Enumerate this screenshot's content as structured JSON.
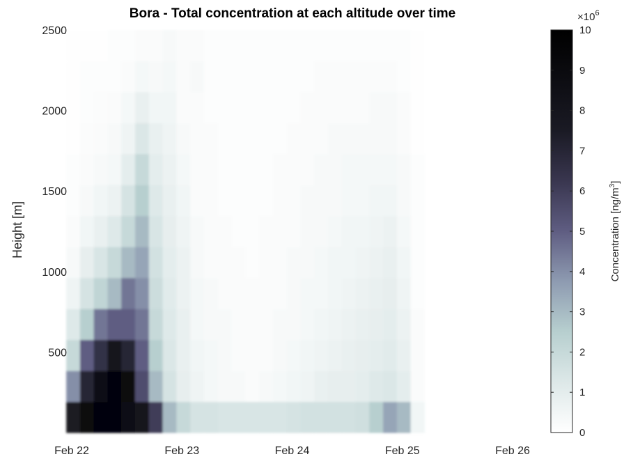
{
  "chart_data": {
    "type": "heatmap",
    "title": "Bora - Total concentration at each altitude over time",
    "ylabel": "Height [m]",
    "xlabel": "",
    "ylim": [
      0,
      2500
    ],
    "yticks": [
      500,
      1000,
      1500,
      2000,
      2500
    ],
    "xlim": [
      "Feb 22",
      "Feb 26"
    ],
    "xticks": [
      "Feb 22",
      "Feb 23",
      "Feb 24",
      "Feb 25",
      "Feb 26"
    ],
    "colorbar": {
      "label": "Concentration [ng/m",
      "label_superscript": "3",
      "label_suffix": "]",
      "multiplier": "×10",
      "multiplier_exponent": "6",
      "range": [
        0,
        10
      ],
      "ticks": [
        0,
        1,
        2,
        3,
        4,
        5,
        6,
        7,
        8,
        9,
        10
      ],
      "colormap": "bone (reversed)"
    },
    "columns": [
      {
        "time": "Feb 22 00:00",
        "values": [
          7.5,
          4.0,
          2.0,
          1.2,
          0.6,
          0.3,
          0.2,
          0.1,
          0.1,
          0.05,
          0.05,
          0.05,
          0.05
        ]
      },
      {
        "time": "Feb 22 03:00",
        "values": [
          9.0,
          7.0,
          5.0,
          2.5,
          1.5,
          0.9,
          0.5,
          0.3,
          0.2,
          0.15,
          0.1,
          0.1,
          0.05
        ]
      },
      {
        "time": "Feb 22 06:00",
        "values": [
          9.5,
          8.5,
          6.5,
          4.5,
          2.2,
          1.4,
          0.8,
          0.5,
          0.3,
          0.2,
          0.15,
          0.1,
          0.05
        ]
      },
      {
        "time": "Feb 22 09:00",
        "values": [
          9.5,
          9.5,
          8.0,
          5.0,
          3.0,
          2.0,
          1.2,
          0.7,
          0.4,
          0.3,
          0.2,
          0.1,
          0.1
        ]
      },
      {
        "time": "Feb 22 12:00",
        "values": [
          8.5,
          9.0,
          7.0,
          5.0,
          4.5,
          3.0,
          2.0,
          1.5,
          1.0,
          0.6,
          0.4,
          0.2,
          0.1
        ]
      },
      {
        "time": "Feb 22 15:00",
        "values": [
          8.0,
          5.5,
          5.0,
          4.5,
          4.0,
          3.5,
          3.0,
          2.5,
          2.0,
          1.3,
          0.8,
          0.4,
          0.2
        ]
      },
      {
        "time": "Feb 22 18:00",
        "values": [
          6.0,
          3.0,
          2.5,
          2.0,
          1.8,
          1.6,
          1.4,
          1.2,
          1.0,
          0.8,
          0.5,
          0.3,
          0.2
        ]
      },
      {
        "time": "Feb 22 21:00",
        "values": [
          3.0,
          1.5,
          1.3,
          1.2,
          1.1,
          1.0,
          0.9,
          0.8,
          0.7,
          0.6,
          0.5,
          0.4,
          0.3
        ]
      },
      {
        "time": "Feb 23 00:00",
        "values": [
          2.0,
          0.9,
          0.8,
          0.8,
          0.7,
          0.7,
          0.6,
          0.5,
          0.4,
          0.3,
          0.2,
          0.2,
          0.2
        ]
      },
      {
        "time": "Feb 23 03:00",
        "values": [
          1.5,
          0.6,
          0.5,
          0.4,
          0.4,
          0.3,
          0.3,
          0.2,
          0.2,
          0.2,
          0.2,
          0.3,
          0.2
        ]
      },
      {
        "time": "Feb 23 06:00",
        "values": [
          1.5,
          0.4,
          0.4,
          0.3,
          0.3,
          0.2,
          0.2,
          0.2,
          0.2,
          0.2,
          0.1,
          0.1,
          0.1
        ]
      },
      {
        "time": "Feb 23 09:00",
        "values": [
          1.4,
          0.3,
          0.3,
          0.3,
          0.2,
          0.2,
          0.2,
          0.1,
          0.1,
          0.1,
          0.1,
          0.1,
          0.1
        ]
      },
      {
        "time": "Feb 23 12:00",
        "values": [
          1.4,
          0.3,
          0.2,
          0.2,
          0.2,
          0.2,
          0.1,
          0.1,
          0.1,
          0.1,
          0.1,
          0.1,
          0.1
        ]
      },
      {
        "time": "Feb 23 15:00",
        "values": [
          1.4,
          0.2,
          0.2,
          0.2,
          0.2,
          0.1,
          0.1,
          0.1,
          0.1,
          0.1,
          0.1,
          0.1,
          0.1
        ]
      },
      {
        "time": "Feb 23 18:00",
        "values": [
          1.4,
          0.3,
          0.2,
          0.2,
          0.2,
          0.2,
          0.2,
          0.1,
          0.1,
          0.1,
          0.1,
          0.1,
          0.1
        ]
      },
      {
        "time": "Feb 23 21:00",
        "values": [
          1.4,
          0.4,
          0.3,
          0.3,
          0.2,
          0.2,
          0.2,
          0.2,
          0.2,
          0.1,
          0.1,
          0.1,
          0.1
        ]
      },
      {
        "time": "Feb 24 00:00",
        "values": [
          1.5,
          0.5,
          0.4,
          0.3,
          0.3,
          0.3,
          0.2,
          0.2,
          0.2,
          0.2,
          0.1,
          0.1,
          0.1
        ]
      },
      {
        "time": "Feb 24 03:00",
        "values": [
          1.6,
          0.6,
          0.5,
          0.4,
          0.4,
          0.3,
          0.3,
          0.3,
          0.2,
          0.2,
          0.2,
          0.1,
          0.1
        ]
      },
      {
        "time": "Feb 24 06:00",
        "values": [
          1.6,
          0.8,
          0.6,
          0.5,
          0.4,
          0.4,
          0.3,
          0.3,
          0.3,
          0.2,
          0.2,
          0.2,
          0.1
        ]
      },
      {
        "time": "Feb 24 09:00",
        "values": [
          1.6,
          0.9,
          0.7,
          0.6,
          0.5,
          0.5,
          0.4,
          0.3,
          0.3,
          0.3,
          0.2,
          0.2,
          0.1
        ]
      },
      {
        "time": "Feb 24 12:00",
        "values": [
          1.6,
          0.9,
          0.8,
          0.7,
          0.6,
          0.5,
          0.5,
          0.4,
          0.4,
          0.3,
          0.2,
          0.2,
          0.1
        ]
      },
      {
        "time": "Feb 24 15:00",
        "values": [
          1.7,
          1.0,
          0.9,
          0.8,
          0.7,
          0.6,
          0.5,
          0.4,
          0.4,
          0.3,
          0.2,
          0.2,
          0.1
        ]
      },
      {
        "time": "Feb 24 18:00",
        "values": [
          2.5,
          1.2,
          1.0,
          0.9,
          0.8,
          0.7,
          0.6,
          0.5,
          0.4,
          0.3,
          0.3,
          0.2,
          0.1
        ]
      },
      {
        "time": "Feb 24 21:00",
        "values": [
          3.5,
          1.3,
          1.1,
          1.0,
          0.9,
          0.8,
          0.7,
          0.5,
          0.4,
          0.3,
          0.3,
          0.2,
          0.1
        ]
      },
      {
        "time": "Feb 25 00:00",
        "values": [
          3.0,
          1.0,
          0.8,
          0.7,
          0.6,
          0.5,
          0.4,
          0.3,
          0.3,
          0.2,
          0.2,
          0.1,
          0.1
        ]
      },
      {
        "time": "Feb 25 03:00",
        "values": [
          0.5,
          0.2,
          0.2,
          0.2,
          0.1,
          0.1,
          0.1,
          0.1,
          0.1,
          0.05,
          0.05,
          0.05,
          0.05
        ]
      }
    ]
  }
}
